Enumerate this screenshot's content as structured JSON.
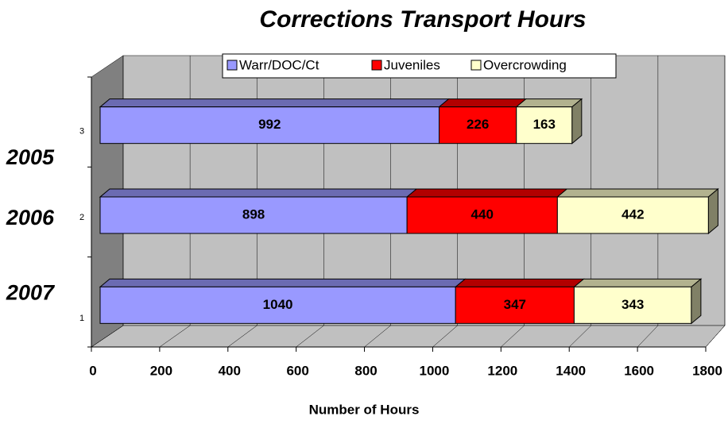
{
  "chart_data": {
    "type": "bar3d_stacked_horizontal",
    "title": "Corrections Transport Hours",
    "x_label": "Number of Hours",
    "categories": [
      "2005",
      "2006",
      "2007"
    ],
    "category_indices": [
      3,
      2,
      1
    ],
    "series": [
      {
        "name": "Warr/DOC/Ct",
        "color": "#9999ff",
        "values": [
          992,
          898,
          1040
        ]
      },
      {
        "name": "Juveniles",
        "color": "#ff0000",
        "values": [
          226,
          440,
          347
        ]
      },
      {
        "name": "Overcrowding",
        "color": "#ffffcc",
        "values": [
          163,
          442,
          343
        ]
      }
    ],
    "xlim": [
      0,
      1800
    ],
    "xticks": [
      0,
      200,
      400,
      600,
      800,
      1000,
      1200,
      1400,
      1600,
      1800
    ],
    "grid": true,
    "legend": "top"
  }
}
